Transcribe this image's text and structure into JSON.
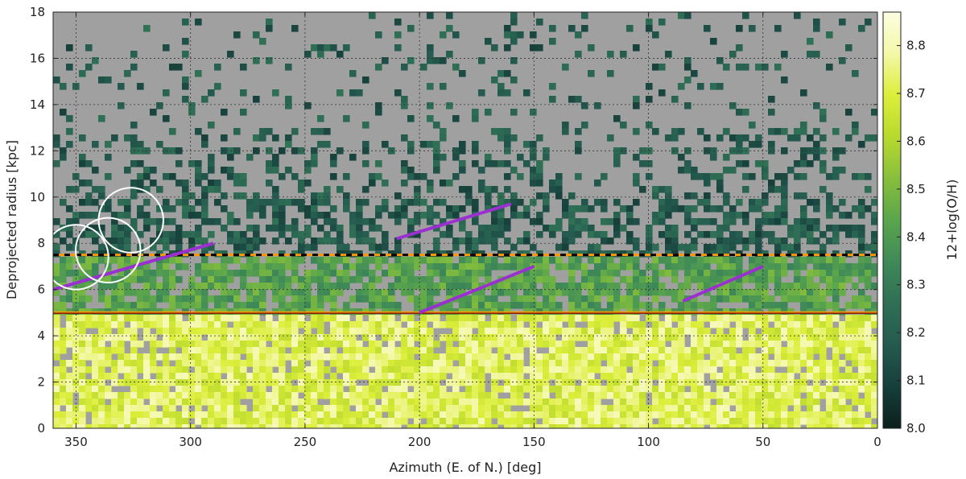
{
  "chart_data": {
    "type": "heatmap",
    "xlabel": "Azimuth (E. of N.) [deg]",
    "ylabel": "Deprojected radius [kpc]",
    "xlim": [
      360,
      0
    ],
    "ylim": [
      0,
      18
    ],
    "x_reversed": true,
    "xticks": [
      350,
      300,
      250,
      200,
      150,
      100,
      50,
      0
    ],
    "yticks": [
      0,
      2,
      4,
      6,
      8,
      10,
      12,
      14,
      16,
      18
    ],
    "grid": true,
    "background_color": "#a0a0a0",
    "colorbar": {
      "label": "12+log(O/H)",
      "range": [
        8.0,
        8.87
      ],
      "ticks": [
        8.0,
        8.1,
        8.2,
        8.3,
        8.4,
        8.5,
        8.6,
        8.7,
        8.8
      ],
      "colors": [
        "#0b1f1c",
        "#163f3a",
        "#245a4e",
        "#2f6f55",
        "#3f8a58",
        "#5aa54c",
        "#87bf3c",
        "#b8d92e",
        "#dcee3a",
        "#f4f8a8",
        "#fcfde0"
      ]
    },
    "horizontal_lines": [
      {
        "y": 7.5,
        "style": "dashed",
        "colors": [
          "#ff9900",
          "#000000"
        ]
      },
      {
        "y": 5.0,
        "style": "solid",
        "colors": [
          "#ff9900",
          "#8b2500"
        ]
      }
    ],
    "segments": [
      {
        "x": [
          360,
          290
        ],
        "y": [
          6.0,
          8.0
        ],
        "color": "#9b30d0"
      },
      {
        "x": [
          210,
          160
        ],
        "y": [
          8.2,
          9.7
        ],
        "color": "#9b30d0"
      },
      {
        "x": [
          200,
          150
        ],
        "y": [
          5.0,
          7.0
        ],
        "color": "#9b30d0"
      },
      {
        "x": [
          85,
          50
        ],
        "y": [
          5.5,
          7.0
        ],
        "color": "#9b30d0"
      }
    ],
    "circles": [
      {
        "x": 350,
        "y": 7.4
      },
      {
        "x": 336,
        "y": 7.7
      },
      {
        "x": 326,
        "y": 9.0
      }
    ],
    "radial_bands": [
      {
        "r": [
          0,
          4.9
        ],
        "level": 8.72
      },
      {
        "r": [
          4.9,
          7.5
        ],
        "level": 8.42
      },
      {
        "r": [
          7.5,
          18
        ],
        "level": 8.18
      }
    ]
  }
}
